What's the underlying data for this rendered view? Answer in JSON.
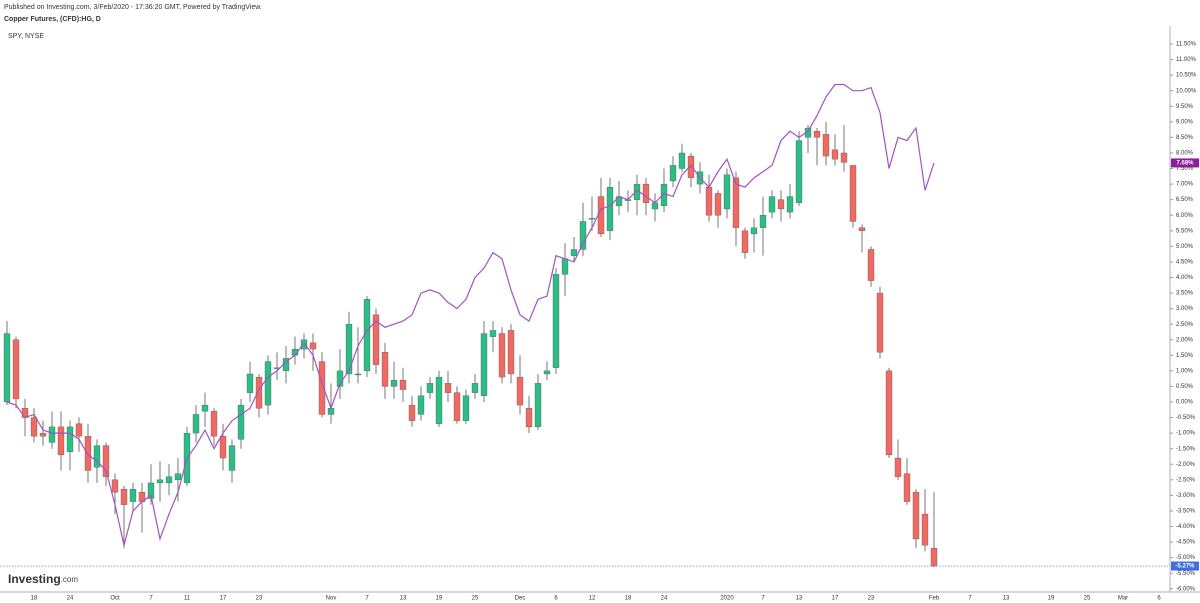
{
  "chart_data": {
    "type": "candlestick",
    "caption": "Published on Investing.com, 3/Feb/2020 - 17:36:20 GMT, Powered by TradingView.",
    "logo": "Investing",
    "logo_suffix": ".com",
    "categories": [
      null,
      null,
      null,
      "18",
      null,
      null,
      null,
      "24",
      null,
      null,
      null,
      null,
      "Oct",
      null,
      null,
      null,
      "7",
      null,
      null,
      null,
      "11",
      null,
      null,
      null,
      "17",
      null,
      null,
      null,
      "23",
      null,
      null,
      null,
      null,
      null,
      null,
      null,
      "Nov",
      null,
      null,
      null,
      "7",
      null,
      null,
      null,
      "13",
      null,
      null,
      null,
      "19",
      null,
      null,
      null,
      "25",
      null,
      null,
      null,
      null,
      "Dec",
      null,
      null,
      null,
      "6",
      null,
      null,
      null,
      "12",
      null,
      null,
      null,
      "18",
      null,
      null,
      null,
      "24",
      null,
      null,
      null,
      null,
      null,
      null,
      "2020",
      null,
      null,
      null,
      "7",
      null,
      null,
      null,
      "13",
      null,
      null,
      null,
      "17",
      null,
      null,
      null,
      "23",
      null,
      null,
      null,
      null,
      null,
      null,
      "Feb",
      null,
      null,
      null,
      "7",
      null,
      null,
      null,
      "13",
      null,
      null,
      null,
      null,
      "19",
      null,
      null,
      null,
      "25",
      null,
      null,
      null,
      "Mar",
      null,
      null,
      null,
      "6"
    ],
    "series": [
      {
        "name": "Copper Futures, (CFD):HG, D",
        "type": "candlestick",
        "up_color": "#2ebd85",
        "down_color": "#ef6a63",
        "wick_color": "#555555",
        "last_label": "-5.27%",
        "label_color": "#3d6fe0",
        "open": [
          0.0,
          2.0,
          -0.2,
          -0.5,
          -1.0,
          -1.3,
          -0.8,
          -1.6,
          -0.7,
          -1.1,
          -2.1,
          -1.4,
          -2.5,
          -2.8,
          -3.2,
          -2.9,
          -3.1,
          -2.6,
          -2.6,
          -2.5,
          -2.6,
          -1.0,
          -0.3,
          -0.3,
          -1.1,
          -2.2,
          -1.2,
          0.3,
          0.8,
          -0.1,
          1.1,
          1.0,
          1.5,
          1.7,
          1.9,
          1.3,
          -0.4,
          0.5,
          0.9,
          0.9,
          1.0,
          2.8,
          1.6,
          0.5,
          0.7,
          -0.1,
          -0.4,
          0.3,
          -0.7,
          0.6,
          0.3,
          -0.6,
          0.3,
          0.2,
          2.1,
          2.2,
          2.3,
          0.8,
          -0.2,
          -0.8,
          0.9,
          1.1,
          4.1,
          4.7,
          4.9,
          5.9,
          6.6,
          5.5,
          6.3,
          6.5,
          6.5,
          7.0,
          6.2,
          6.3,
          7.1,
          7.5,
          7.9,
          7.0,
          6.9,
          6.7,
          6.2,
          7.2,
          5.5,
          5.4,
          5.6,
          6.1,
          6.5,
          6.1,
          6.4,
          8.5,
          8.7,
          8.6,
          8.1,
          8.0,
          7.6,
          5.6,
          4.9,
          3.5,
          1.0,
          -1.8,
          -2.3,
          -2.9,
          -3.6,
          -4.7,
          null,
          null,
          null,
          null,
          null,
          null,
          null,
          null,
          null,
          null,
          null,
          null,
          null,
          null,
          null,
          null,
          null,
          null,
          null,
          null,
          null,
          null,
          null,
          null,
          null
        ],
        "high": [
          2.6,
          2.1,
          0.1,
          -0.2,
          -0.6,
          -0.3,
          -0.3,
          -0.6,
          -0.5,
          -0.7,
          -1.2,
          -1.3,
          -2.3,
          -2.7,
          -2.6,
          -2.6,
          -2.0,
          -1.9,
          -2.0,
          -1.8,
          -0.8,
          -0.1,
          0.3,
          -0.2,
          -0.7,
          -1.2,
          0.1,
          1.3,
          0.9,
          1.5,
          1.6,
          1.8,
          2.1,
          2.2,
          2.2,
          1.6,
          0.6,
          1.7,
          2.9,
          2.4,
          3.4,
          3.0,
          1.9,
          1.3,
          1.1,
          0.2,
          0.5,
          0.8,
          1.0,
          1.0,
          0.5,
          0.4,
          0.9,
          2.6,
          2.6,
          2.4,
          2.5,
          1.5,
          0.2,
          0.9,
          1.3,
          4.3,
          5.1,
          5.3,
          6.4,
          6.6,
          7.2,
          7.2,
          7.1,
          6.8,
          7.3,
          7.2,
          6.7,
          7.5,
          7.9,
          8.3,
          8.0,
          7.7,
          7.3,
          6.8,
          7.5,
          7.4,
          5.6,
          5.9,
          6.6,
          6.8,
          6.8,
          7.0,
          8.7,
          8.9,
          8.8,
          9.0,
          8.6,
          8.9,
          7.6,
          5.7,
          5.0,
          3.7,
          1.1,
          -1.2,
          -1.8,
          -2.8,
          -2.8,
          -2.9,
          null,
          null,
          null,
          null,
          null,
          null,
          null,
          null,
          null,
          null,
          null,
          null,
          null,
          null,
          null,
          null,
          null,
          null,
          null,
          null,
          null,
          null,
          null,
          null,
          null
        ],
        "low": [
          -0.1,
          -0.2,
          -1.1,
          -1.3,
          -1.4,
          -1.5,
          -2.2,
          -2.2,
          -1.6,
          -2.6,
          -2.6,
          -2.7,
          -3.6,
          -4.7,
          -3.5,
          -4.2,
          -3.3,
          -3.2,
          -3.0,
          -3.2,
          -2.7,
          -1.3,
          -0.8,
          -1.4,
          -2.2,
          -2.6,
          -1.5,
          0.0,
          -0.5,
          -0.4,
          0.7,
          0.6,
          1.2,
          1.4,
          1.0,
          -0.5,
          -0.7,
          0.1,
          0.6,
          0.6,
          0.8,
          0.9,
          0.1,
          0.1,
          0.0,
          -0.8,
          -0.6,
          0.1,
          -0.8,
          0.0,
          -0.7,
          -0.7,
          0.1,
          0.0,
          1.6,
          0.6,
          0.6,
          -0.4,
          -1.0,
          -0.9,
          0.7,
          0.9,
          3.4,
          4.5,
          4.7,
          5.5,
          5.3,
          5.2,
          6.0,
          6.1,
          6.0,
          6.0,
          5.8,
          6.1,
          6.9,
          7.4,
          6.9,
          6.7,
          5.8,
          5.6,
          5.9,
          5.0,
          4.6,
          4.8,
          4.7,
          5.9,
          5.8,
          5.9,
          6.3,
          8.0,
          7.6,
          7.6,
          7.6,
          7.4,
          5.6,
          4.8,
          3.7,
          1.4,
          -1.8,
          -2.5,
          -3.3,
          -4.7,
          -4.8,
          -5.3,
          null,
          null,
          null,
          null,
          null,
          null,
          null,
          null,
          null,
          null,
          null,
          null,
          null,
          null,
          null,
          null,
          null,
          null,
          null,
          null,
          null,
          null,
          null,
          null,
          null
        ],
        "close": [
          2.2,
          0.1,
          -0.5,
          -1.1,
          -1.1,
          -0.8,
          -1.7,
          -0.8,
          -1.1,
          -2.2,
          -1.4,
          -2.4,
          -2.9,
          -3.3,
          -2.8,
          -3.2,
          -2.6,
          -2.5,
          -2.4,
          -2.3,
          -1.0,
          -0.4,
          -0.1,
          -1.1,
          -1.8,
          -1.4,
          -0.1,
          0.9,
          -0.2,
          1.3,
          1.1,
          1.4,
          1.7,
          2.0,
          1.7,
          -0.4,
          -0.2,
          1.0,
          2.5,
          0.9,
          3.3,
          1.2,
          0.5,
          0.7,
          0.4,
          -0.6,
          0.2,
          0.6,
          0.8,
          0.3,
          -0.6,
          0.2,
          0.6,
          2.2,
          2.3,
          0.8,
          0.9,
          -0.1,
          -0.8,
          0.6,
          1.0,
          4.1,
          4.6,
          4.9,
          5.8,
          5.9,
          5.4,
          6.9,
          6.6,
          6.5,
          7.0,
          6.4,
          6.4,
          7.0,
          7.6,
          8.0,
          7.2,
          7.4,
          6.0,
          6.0,
          7.3,
          5.6,
          4.8,
          5.6,
          6.0,
          6.6,
          6.2,
          6.6,
          8.4,
          8.8,
          8.5,
          7.9,
          7.8,
          7.7,
          5.8,
          5.5,
          3.9,
          1.6,
          -1.7,
          -2.4,
          -3.2,
          -4.4,
          -4.6,
          -5.27,
          null,
          null,
          null,
          null,
          null,
          null,
          null,
          null,
          null,
          null,
          null,
          null,
          null,
          null,
          null,
          null,
          null,
          null,
          null,
          null,
          null,
          null,
          null,
          null,
          null
        ]
      },
      {
        "name": "SPY, NYSE",
        "type": "line",
        "color": "#a352c4",
        "last_label": "7.68%",
        "label_color": "#8a1f9a",
        "values": [
          0.0,
          -0.1,
          -0.5,
          -0.4,
          -0.9,
          -1.0,
          -1.0,
          -1.0,
          -1.2,
          -1.7,
          -1.9,
          -2.2,
          -3.3,
          -4.6,
          -3.5,
          -3.2,
          -3.0,
          -4.4,
          -3.6,
          -2.9,
          -1.8,
          -1.4,
          -0.9,
          -1.5,
          -1.0,
          -0.6,
          -0.4,
          -0.2,
          0.4,
          0.8,
          1.0,
          1.3,
          1.5,
          1.9,
          1.5,
          0.6,
          -0.2,
          0.6,
          1.0,
          1.8,
          2.3,
          2.6,
          2.4,
          2.5,
          2.6,
          2.8,
          3.5,
          3.6,
          3.5,
          3.2,
          3.0,
          3.3,
          4.0,
          4.3,
          4.8,
          4.6,
          3.6,
          2.8,
          2.6,
          3.3,
          3.4,
          4.7,
          4.6,
          4.5,
          5.1,
          5.6,
          6.2,
          6.3,
          6.6,
          6.5,
          6.8,
          6.6,
          6.4,
          6.7,
          6.6,
          7.3,
          7.6,
          7.2,
          6.9,
          7.4,
          7.8,
          7.0,
          6.9,
          7.2,
          7.4,
          7.6,
          8.4,
          8.7,
          8.5,
          8.7,
          9.2,
          9.8,
          10.2,
          10.2,
          10.0,
          10.0,
          10.1,
          9.3,
          7.5,
          8.5,
          8.4,
          8.8,
          6.8,
          7.68,
          null,
          null,
          null,
          null,
          null,
          null,
          null,
          null,
          null,
          null,
          null,
          null,
          null,
          null,
          null,
          null,
          null,
          null,
          null,
          null,
          null,
          null,
          null,
          null,
          null
        ]
      }
    ],
    "ylim": [
      -6.2,
      11.95
    ],
    "yticks": [
      {
        "value": 11.5,
        "label": "11.50%"
      },
      {
        "value": 11,
        "label": "11.00%"
      },
      {
        "value": 10.5,
        "label": "10.50%"
      },
      {
        "value": 10,
        "label": "10.00%"
      },
      {
        "value": 9.5,
        "label": "9.50%"
      },
      {
        "value": 9,
        "label": "9.00%"
      },
      {
        "value": 8.5,
        "label": "8.50%"
      },
      {
        "value": 8,
        "label": "8.00%"
      },
      {
        "value": 7.5,
        "label": "7.50%"
      },
      {
        "value": 7,
        "label": "7.00%"
      },
      {
        "value": 6.5,
        "label": "6.50%"
      },
      {
        "value": 6,
        "label": "6.00%"
      },
      {
        "value": 5.5,
        "label": "5.50%"
      },
      {
        "value": 5,
        "label": "5.00%"
      },
      {
        "value": 4.5,
        "label": "4.50%"
      },
      {
        "value": 4,
        "label": "4.00%"
      },
      {
        "value": 3.5,
        "label": "3.50%"
      },
      {
        "value": 3,
        "label": "3.00%"
      },
      {
        "value": 2.5,
        "label": "2.50%"
      },
      {
        "value": 2,
        "label": "2.00%"
      },
      {
        "value": 1.5,
        "label": "1.50%"
      },
      {
        "value": 1,
        "label": "1.00%"
      },
      {
        "value": 0.5,
        "label": "0.50%"
      },
      {
        "value": 0,
        "label": "0.00%"
      },
      {
        "value": -0.5,
        "label": "-0.50%"
      },
      {
        "value": -1,
        "label": "-1.00%"
      },
      {
        "value": -1.5,
        "label": "-1.50%"
      },
      {
        "value": -2,
        "label": "-2.00%"
      },
      {
        "value": -2.5,
        "label": "-2.50%"
      },
      {
        "value": -3,
        "label": "-3.00%"
      },
      {
        "value": -3.5,
        "label": "-3.50%"
      },
      {
        "value": -4,
        "label": "-4.00%"
      },
      {
        "value": -4.5,
        "label": "-4.50%"
      },
      {
        "value": -5,
        "label": "-5.00%"
      },
      {
        "value": -5.5,
        "label": "-5.50%"
      },
      {
        "value": -6,
        "label": "-6.00%"
      }
    ],
    "grid": false
  }
}
